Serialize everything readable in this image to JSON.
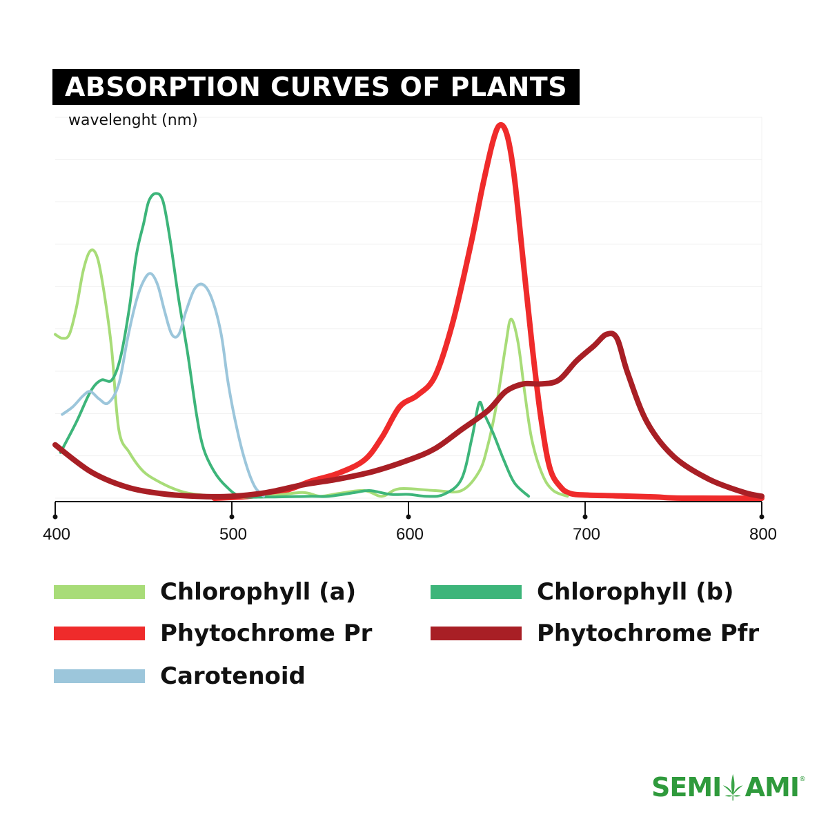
{
  "title": "ABSORPTION CURVES OF PLANTS",
  "brand": {
    "name_left": "SEMI",
    "name_right": "AMI",
    "reg": "®"
  },
  "chart_data": {
    "type": "line",
    "title": "ABSORPTION CURVES OF PLANTS",
    "xlabel": "wavelenght (nm)",
    "ylabel": "",
    "xlim": [
      400,
      800
    ],
    "ylim": [
      0,
      1
    ],
    "xticks": [
      "400",
      "500",
      "600",
      "700",
      "800"
    ],
    "grid": true,
    "legend_position": "bottom",
    "series": [
      {
        "name": "Chlorophyll (a)",
        "color": "#a8dc78",
        "points": [
          [
            400,
            0.43
          ],
          [
            404,
            0.42
          ],
          [
            408,
            0.43
          ],
          [
            412,
            0.5
          ],
          [
            416,
            0.6
          ],
          [
            420,
            0.65
          ],
          [
            424,
            0.63
          ],
          [
            428,
            0.53
          ],
          [
            432,
            0.39
          ],
          [
            436,
            0.18
          ],
          [
            442,
            0.12
          ],
          [
            450,
            0.07
          ],
          [
            460,
            0.04
          ],
          [
            470,
            0.02
          ],
          [
            480,
            0.01
          ],
          [
            500,
            0.003
          ],
          [
            520,
            0.005
          ],
          [
            540,
            0.015
          ],
          [
            550,
            0.005
          ],
          [
            560,
            0.012
          ],
          [
            575,
            0.02
          ],
          [
            585,
            0.005
          ],
          [
            595,
            0.025
          ],
          [
            615,
            0.02
          ],
          [
            630,
            0.02
          ],
          [
            640,
            0.07
          ],
          [
            645,
            0.14
          ],
          [
            650,
            0.25
          ],
          [
            655,
            0.4
          ],
          [
            658,
            0.47
          ],
          [
            662,
            0.41
          ],
          [
            666,
            0.27
          ],
          [
            670,
            0.15
          ],
          [
            676,
            0.06
          ],
          [
            682,
            0.02
          ],
          [
            690,
            0.005
          ]
        ]
      },
      {
        "name": "Chlorophyll (b)",
        "color": "#3db57a",
        "points": [
          [
            403,
            0.12
          ],
          [
            412,
            0.2
          ],
          [
            420,
            0.28
          ],
          [
            426,
            0.31
          ],
          [
            432,
            0.31
          ],
          [
            437,
            0.37
          ],
          [
            442,
            0.5
          ],
          [
            446,
            0.64
          ],
          [
            450,
            0.72
          ],
          [
            453,
            0.78
          ],
          [
            457,
            0.8
          ],
          [
            461,
            0.78
          ],
          [
            465,
            0.68
          ],
          [
            470,
            0.52
          ],
          [
            475,
            0.38
          ],
          [
            480,
            0.22
          ],
          [
            484,
            0.13
          ],
          [
            490,
            0.07
          ],
          [
            497,
            0.03
          ],
          [
            505,
            0.005
          ],
          [
            520,
            0.003
          ],
          [
            545,
            0.005
          ],
          [
            555,
            0.005
          ],
          [
            570,
            0.015
          ],
          [
            578,
            0.02
          ],
          [
            590,
            0.01
          ],
          [
            600,
            0.01
          ],
          [
            610,
            0.005
          ],
          [
            620,
            0.01
          ],
          [
            630,
            0.05
          ],
          [
            636,
            0.16
          ],
          [
            640,
            0.25
          ],
          [
            643,
            0.22
          ],
          [
            648,
            0.17
          ],
          [
            654,
            0.1
          ],
          [
            660,
            0.04
          ],
          [
            668,
            0.005
          ]
        ]
      },
      {
        "name": "Phytochrome Pr",
        "color": "#ef2b2b",
        "points": [
          [
            490,
            0.0
          ],
          [
            510,
            0.005
          ],
          [
            530,
            0.02
          ],
          [
            545,
            0.045
          ],
          [
            560,
            0.065
          ],
          [
            575,
            0.1
          ],
          [
            585,
            0.16
          ],
          [
            595,
            0.24
          ],
          [
            605,
            0.27
          ],
          [
            615,
            0.32
          ],
          [
            625,
            0.46
          ],
          [
            635,
            0.66
          ],
          [
            642,
            0.82
          ],
          [
            648,
            0.94
          ],
          [
            652,
            0.98
          ],
          [
            656,
            0.95
          ],
          [
            660,
            0.84
          ],
          [
            665,
            0.62
          ],
          [
            670,
            0.4
          ],
          [
            675,
            0.21
          ],
          [
            680,
            0.08
          ],
          [
            686,
            0.03
          ],
          [
            692,
            0.012
          ],
          [
            702,
            0.008
          ],
          [
            720,
            0.006
          ],
          [
            740,
            0.003
          ],
          [
            755,
            0.0
          ],
          [
            800,
            0.0
          ]
        ]
      },
      {
        "name": "Phytochrome Pfr",
        "color": "#a81f25",
        "points": [
          [
            400,
            0.14
          ],
          [
            420,
            0.07
          ],
          [
            440,
            0.03
          ],
          [
            460,
            0.012
          ],
          [
            480,
            0.005
          ],
          [
            500,
            0.005
          ],
          [
            520,
            0.015
          ],
          [
            540,
            0.035
          ],
          [
            560,
            0.05
          ],
          [
            580,
            0.07
          ],
          [
            600,
            0.1
          ],
          [
            615,
            0.13
          ],
          [
            630,
            0.18
          ],
          [
            645,
            0.23
          ],
          [
            655,
            0.28
          ],
          [
            665,
            0.3
          ],
          [
            675,
            0.3
          ],
          [
            685,
            0.31
          ],
          [
            695,
            0.36
          ],
          [
            705,
            0.4
          ],
          [
            712,
            0.43
          ],
          [
            718,
            0.42
          ],
          [
            724,
            0.33
          ],
          [
            735,
            0.2
          ],
          [
            750,
            0.11
          ],
          [
            770,
            0.05
          ],
          [
            790,
            0.015
          ],
          [
            800,
            0.005
          ]
        ]
      },
      {
        "name": "Carotenoid",
        "color": "#9cc6db",
        "points": [
          [
            404,
            0.22
          ],
          [
            410,
            0.24
          ],
          [
            416,
            0.27
          ],
          [
            420,
            0.28
          ],
          [
            425,
            0.26
          ],
          [
            430,
            0.25
          ],
          [
            436,
            0.3
          ],
          [
            441,
            0.42
          ],
          [
            446,
            0.52
          ],
          [
            450,
            0.57
          ],
          [
            454,
            0.59
          ],
          [
            458,
            0.56
          ],
          [
            462,
            0.49
          ],
          [
            466,
            0.43
          ],
          [
            470,
            0.43
          ],
          [
            474,
            0.49
          ],
          [
            479,
            0.55
          ],
          [
            484,
            0.56
          ],
          [
            489,
            0.52
          ],
          [
            494,
            0.43
          ],
          [
            498,
            0.3
          ],
          [
            503,
            0.18
          ],
          [
            508,
            0.09
          ],
          [
            513,
            0.03
          ],
          [
            518,
            0.005
          ]
        ]
      }
    ]
  }
}
